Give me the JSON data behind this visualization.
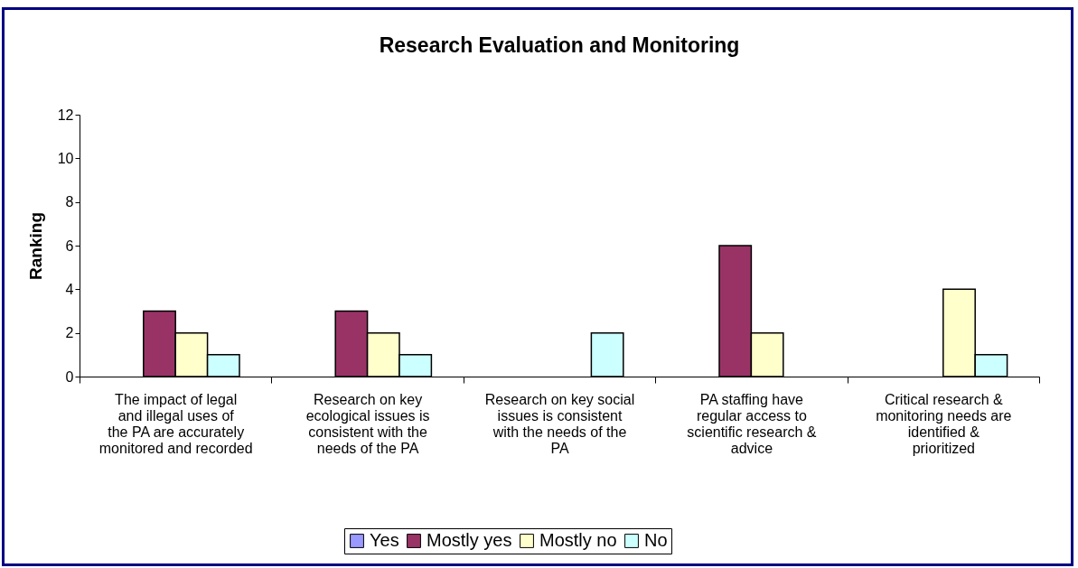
{
  "chart_data": {
    "type": "bar",
    "title": "Research Evaluation and Monitoring",
    "ylabel": "Ranking",
    "categories": [
      "The impact of legal and illegal uses of the PA are accurately monitored and recorded",
      "Research on key ecological issues is consistent with the needs of the PA",
      "Research on key social issues is consistent with the needs of the PA",
      "PA staffing have regular access to scientific research & advice",
      "Critical research & monitoring needs are identified & prioritized"
    ],
    "series": [
      {
        "name": "Yes",
        "color": "#9999ff",
        "values": [
          null,
          null,
          null,
          null,
          null
        ]
      },
      {
        "name": "Mostly yes",
        "color": "#993366",
        "values": [
          3,
          3,
          null,
          6,
          null
        ]
      },
      {
        "name": "Mostly no",
        "color": "#ffffcc",
        "values": [
          2,
          2,
          null,
          2,
          4
        ]
      },
      {
        "name": "No",
        "color": "#ccffff",
        "values": [
          1,
          1,
          2,
          null,
          1
        ]
      }
    ],
    "ylim": [
      0,
      12
    ],
    "yticks": [
      0,
      2,
      4,
      6,
      8,
      10,
      12
    ],
    "grid": false,
    "legend": "bottom"
  }
}
